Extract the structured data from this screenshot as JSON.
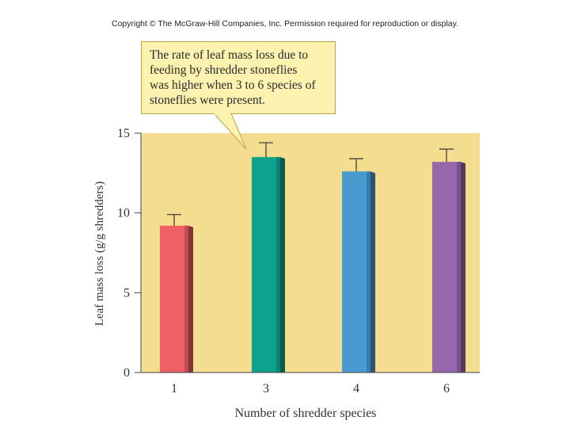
{
  "copyright": "Copyright © The McGraw-Hill Companies, Inc. Permission required for reproduction or display.",
  "callout": {
    "lines": [
      "The rate of leaf mass loss due to",
      "feeding by shredder stoneflies",
      "was higher when 3 to 6 species of",
      "stoneflies were present."
    ]
  },
  "chart_data": {
    "type": "bar",
    "title": "",
    "xlabel": "Number of shredder species",
    "ylabel": "Leaf mass loss (g/g shredders)",
    "categories": [
      "1",
      "3",
      "4",
      "6"
    ],
    "values": [
      9.2,
      13.5,
      12.6,
      13.2
    ],
    "error": [
      0.7,
      0.9,
      0.8,
      0.8
    ],
    "ylim": [
      0,
      15
    ],
    "yticks": [
      0,
      5,
      10,
      15
    ],
    "colors": [
      "#ef6066",
      "#0ca38e",
      "#4a9ad1",
      "#9767ab"
    ],
    "background": "#f5dd8f"
  }
}
